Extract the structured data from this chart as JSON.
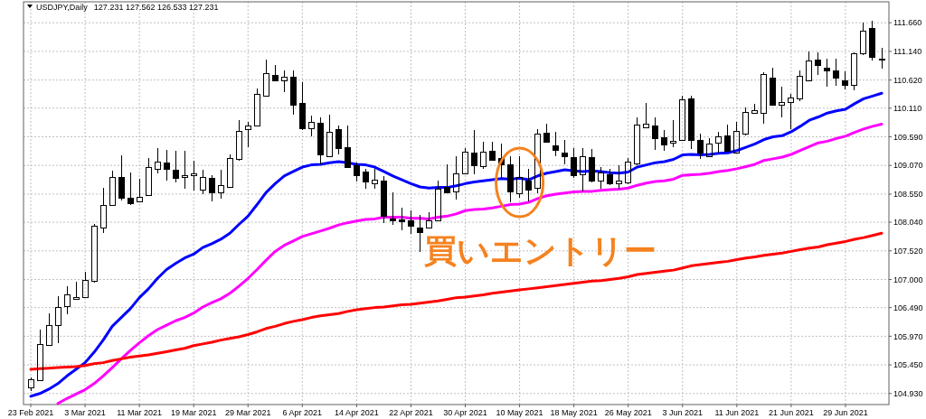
{
  "chart_data": {
    "type": "candlestick",
    "title": "USDJPY,Daily",
    "subtitle": "127.231 127.562 126.533 127.231",
    "categories": [
      "23 Feb 2021",
      null,
      null,
      null,
      null,
      null,
      "3 Mar 2021",
      null,
      null,
      null,
      null,
      null,
      "11 Mar 2021",
      null,
      null,
      null,
      null,
      null,
      "19 Mar 2021",
      null,
      null,
      null,
      null,
      null,
      "29 Mar 2021",
      null,
      null,
      null,
      null,
      null,
      "6 Apr 2021",
      null,
      null,
      null,
      null,
      null,
      "14 Apr 2021",
      null,
      null,
      null,
      null,
      null,
      "22 Apr 2021",
      null,
      null,
      null,
      null,
      null,
      "30 Apr 2021",
      null,
      null,
      null,
      null,
      null,
      "10 May 2021",
      null,
      null,
      null,
      null,
      null,
      "18 May 2021",
      null,
      null,
      null,
      null,
      null,
      "26 May 2021",
      null,
      null,
      null,
      null,
      null,
      "3 Jun 2021",
      null,
      null,
      null,
      null,
      null,
      "11 Jun 2021",
      null,
      null,
      null,
      null,
      null,
      "21 Jun 2021",
      null,
      null,
      null,
      null,
      null,
      "29 Jun 2021",
      null,
      null,
      null,
      null
    ],
    "ohlc": [
      [
        105.03,
        105.22,
        104.98,
        105.18
      ],
      [
        105.16,
        106.09,
        105.15,
        105.82
      ],
      [
        105.8,
        106.39,
        105.8,
        106.17
      ],
      [
        106.17,
        106.69,
        105.85,
        106.49
      ],
      [
        106.51,
        106.88,
        106.37,
        106.72
      ],
      [
        106.64,
        106.96,
        106.64,
        106.68
      ],
      [
        106.68,
        107.14,
        106.67,
        106.99
      ],
      [
        106.96,
        108.0,
        106.95,
        107.96
      ],
      [
        107.94,
        108.66,
        107.84,
        108.35
      ],
      [
        108.34,
        108.97,
        108.34,
        108.86
      ],
      [
        108.86,
        109.26,
        108.44,
        108.47
      ],
      [
        108.47,
        108.95,
        108.36,
        108.37
      ],
      [
        108.41,
        108.83,
        108.4,
        108.49
      ],
      [
        108.52,
        109.2,
        108.52,
        109.03
      ],
      [
        109.0,
        109.38,
        108.93,
        109.13
      ],
      [
        109.12,
        109.36,
        108.79,
        109.0
      ],
      [
        108.99,
        109.34,
        108.77,
        108.83
      ],
      [
        108.85,
        109.34,
        108.64,
        108.89
      ],
      [
        108.89,
        109.16,
        108.62,
        108.91
      ],
      [
        108.62,
        108.99,
        108.55,
        108.86
      ],
      [
        108.83,
        108.9,
        108.42,
        108.58
      ],
      [
        108.57,
        108.99,
        108.47,
        108.71
      ],
      [
        108.68,
        109.27,
        108.68,
        109.2
      ],
      [
        109.18,
        109.89,
        109.16,
        109.69
      ],
      [
        109.72,
        109.86,
        109.4,
        109.79
      ],
      [
        109.79,
        110.46,
        109.78,
        110.36
      ],
      [
        110.33,
        110.99,
        110.32,
        110.73
      ],
      [
        110.71,
        110.89,
        110.6,
        110.61
      ],
      [
        110.61,
        110.79,
        110.4,
        110.67
      ],
      [
        110.67,
        110.79,
        109.99,
        110.17
      ],
      [
        110.19,
        110.58,
        109.71,
        109.73
      ],
      [
        109.73,
        109.97,
        109.6,
        109.85
      ],
      [
        109.83,
        109.94,
        109.09,
        109.27
      ],
      [
        109.23,
        109.99,
        109.23,
        109.67
      ],
      [
        109.72,
        109.8,
        109.27,
        109.38
      ],
      [
        109.4,
        109.79,
        109.03,
        109.04
      ],
      [
        109.07,
        109.12,
        108.78,
        108.89
      ],
      [
        108.95,
        109.0,
        108.64,
        108.77
      ],
      [
        108.74,
        109.0,
        108.64,
        108.81
      ],
      [
        108.78,
        108.88,
        108.03,
        108.14
      ],
      [
        108.09,
        108.58,
        107.99,
        108.06
      ],
      [
        108.08,
        108.3,
        107.89,
        108.05
      ],
      [
        108.06,
        108.25,
        107.82,
        107.96
      ],
      [
        107.94,
        108.17,
        107.5,
        107.86
      ],
      [
        107.94,
        108.22,
        107.93,
        108.07
      ],
      [
        108.07,
        108.79,
        108.06,
        108.64
      ],
      [
        108.68,
        109.09,
        108.57,
        108.58
      ],
      [
        108.59,
        109.24,
        108.45,
        108.91
      ],
      [
        108.91,
        109.38,
        108.91,
        109.31
      ],
      [
        109.29,
        109.72,
        108.91,
        109.07
      ],
      [
        109.05,
        109.5,
        109.01,
        109.31
      ],
      [
        109.32,
        109.5,
        109.15,
        109.16
      ],
      [
        109.19,
        109.46,
        108.85,
        109.08
      ],
      [
        109.08,
        109.23,
        108.4,
        108.59
      ],
      [
        108.56,
        109.24,
        108.48,
        108.86
      ],
      [
        108.79,
        109.0,
        108.42,
        108.62
      ],
      [
        108.66,
        109.73,
        108.56,
        109.64
      ],
      [
        109.65,
        109.82,
        109.49,
        109.49
      ],
      [
        109.43,
        109.68,
        109.24,
        109.35
      ],
      [
        109.29,
        109.53,
        109.09,
        109.23
      ],
      [
        109.22,
        109.38,
        108.85,
        108.89
      ],
      [
        108.9,
        109.38,
        108.6,
        109.23
      ],
      [
        109.22,
        109.37,
        108.77,
        108.78
      ],
      [
        108.78,
        109.04,
        108.64,
        108.94
      ],
      [
        108.9,
        109.01,
        108.72,
        108.73
      ],
      [
        108.74,
        109.08,
        108.64,
        108.78
      ],
      [
        108.75,
        109.2,
        108.73,
        109.13
      ],
      [
        109.09,
        109.94,
        109.08,
        109.81
      ],
      [
        109.76,
        110.21,
        109.75,
        109.82
      ],
      [
        109.79,
        109.94,
        109.36,
        109.55
      ],
      [
        109.58,
        109.71,
        109.34,
        109.45
      ],
      [
        109.48,
        109.89,
        109.4,
        109.5
      ],
      [
        109.52,
        110.33,
        109.51,
        110.26
      ],
      [
        110.28,
        110.33,
        109.37,
        109.53
      ],
      [
        109.53,
        109.64,
        109.19,
        109.29
      ],
      [
        109.23,
        109.56,
        109.22,
        109.46
      ],
      [
        109.47,
        109.68,
        109.31,
        109.59
      ],
      [
        109.6,
        109.81,
        109.32,
        109.32
      ],
      [
        109.3,
        109.86,
        109.29,
        109.68
      ],
      [
        109.64,
        110.13,
        109.62,
        110.03
      ],
      [
        110.02,
        110.19,
        110.01,
        110.07
      ],
      [
        110.01,
        110.76,
        109.82,
        110.72
      ],
      [
        110.65,
        110.84,
        110.17,
        110.17
      ],
      [
        110.16,
        110.5,
        109.95,
        110.21
      ],
      [
        110.21,
        110.37,
        109.73,
        110.3
      ],
      [
        110.27,
        110.8,
        110.24,
        110.68
      ],
      [
        110.6,
        111.14,
        110.59,
        110.97
      ],
      [
        110.98,
        111.13,
        110.72,
        110.89
      ],
      [
        110.84,
        111.0,
        110.5,
        110.79
      ],
      [
        110.79,
        111.0,
        110.51,
        110.65
      ],
      [
        110.6,
        110.78,
        110.45,
        110.53
      ],
      [
        110.53,
        111.13,
        110.44,
        111.09
      ],
      [
        111.09,
        111.67,
        111.08,
        111.51
      ],
      [
        111.55,
        111.69,
        110.98,
        111.03
      ],
      [
        111.0,
        111.21,
        110.82,
        110.98
      ]
    ],
    "series": [
      {
        "type": "line",
        "color": "#0000ff",
        "values": [
          104.88,
          104.93,
          105.01,
          105.11,
          105.25,
          105.37,
          105.49,
          105.68,
          105.9,
          106.15,
          106.31,
          106.47,
          106.67,
          106.83,
          107.02,
          107.18,
          107.29,
          107.39,
          107.46,
          107.58,
          107.65,
          107.73,
          107.84,
          108.0,
          108.15,
          108.36,
          108.58,
          108.74,
          108.88,
          108.96,
          109.04,
          109.08,
          109.09,
          109.12,
          109.14,
          109.12,
          109.09,
          109.08,
          109.04,
          108.96,
          108.88,
          108.81,
          108.74,
          108.68,
          108.66,
          108.67,
          108.67,
          108.7,
          108.74,
          108.77,
          108.79,
          108.81,
          108.83,
          108.82,
          108.84,
          108.81,
          108.88,
          108.93,
          108.96,
          108.99,
          108.97,
          108.96,
          108.97,
          108.96,
          108.94,
          108.93,
          108.95,
          109.04,
          109.08,
          109.12,
          109.14,
          109.18,
          109.26,
          109.27,
          109.26,
          109.27,
          109.29,
          109.3,
          109.34,
          109.4,
          109.46,
          109.54,
          109.59,
          109.61,
          109.68,
          109.78,
          109.89,
          109.95,
          110.02,
          110.06,
          110.09,
          110.19,
          110.28,
          110.33,
          110.38
        ]
      },
      {
        "type": "line",
        "color": "#ff00ff",
        "values": [
          null,
          null,
          null,
          104.75,
          104.84,
          104.92,
          105.0,
          105.11,
          105.25,
          105.4,
          105.56,
          105.71,
          105.85,
          105.98,
          106.09,
          106.17,
          106.25,
          106.31,
          106.39,
          106.5,
          106.58,
          106.65,
          106.75,
          106.88,
          107.02,
          107.18,
          107.35,
          107.51,
          107.62,
          107.7,
          107.78,
          107.83,
          107.88,
          107.93,
          107.99,
          108.03,
          108.06,
          108.09,
          108.1,
          108.13,
          108.13,
          108.13,
          108.11,
          108.11,
          108.1,
          108.13,
          108.15,
          108.19,
          108.25,
          108.27,
          108.28,
          108.3,
          108.33,
          108.36,
          108.37,
          108.4,
          108.47,
          108.52,
          108.55,
          108.57,
          108.59,
          108.6,
          108.6,
          108.62,
          108.63,
          108.64,
          108.66,
          108.71,
          108.75,
          108.78,
          108.79,
          108.82,
          108.89,
          108.9,
          108.91,
          108.93,
          108.96,
          108.98,
          109.01,
          109.05,
          109.09,
          109.16,
          109.19,
          109.22,
          109.27,
          109.34,
          109.41,
          109.48,
          109.51,
          109.56,
          109.6,
          109.67,
          109.73,
          109.78,
          109.82
        ]
      },
      {
        "type": "line",
        "color": "#ff0000",
        "values": [
          105.37,
          105.38,
          105.39,
          105.4,
          105.41,
          105.42,
          105.44,
          105.47,
          105.49,
          105.53,
          105.56,
          105.59,
          105.61,
          105.63,
          105.66,
          105.69,
          105.72,
          105.75,
          105.8,
          105.83,
          105.86,
          105.9,
          105.93,
          105.96,
          106.0,
          106.05,
          106.11,
          106.15,
          106.2,
          106.24,
          106.27,
          106.31,
          106.34,
          106.36,
          106.38,
          106.42,
          106.45,
          106.47,
          106.49,
          106.5,
          106.52,
          106.54,
          106.55,
          106.57,
          106.59,
          106.61,
          106.64,
          106.67,
          106.68,
          106.7,
          106.72,
          106.75,
          106.77,
          106.79,
          106.81,
          106.83,
          106.85,
          106.87,
          106.89,
          106.91,
          106.93,
          106.95,
          106.97,
          106.98,
          107.0,
          107.02,
          107.05,
          107.09,
          107.11,
          107.13,
          107.15,
          107.17,
          107.21,
          107.25,
          107.27,
          107.29,
          107.31,
          107.33,
          107.36,
          107.39,
          107.41,
          107.44,
          107.46,
          107.48,
          107.51,
          107.54,
          107.57,
          107.59,
          107.63,
          107.66,
          107.69,
          107.73,
          107.76,
          107.8,
          107.84
        ]
      }
    ],
    "ylim": [
      104.73,
      112.04
    ],
    "yticks": [
      {
        "value": 111.66,
        "label": "111.660"
      },
      {
        "value": 111.14,
        "label": "111.140"
      },
      {
        "value": 110.62,
        "label": "110.620"
      },
      {
        "value": 110.11,
        "label": "110.110"
      },
      {
        "value": 109.59,
        "label": "109.590"
      },
      {
        "value": 109.07,
        "label": "109.070"
      },
      {
        "value": 108.55,
        "label": "108.550"
      },
      {
        "value": 108.04,
        "label": "108.040"
      },
      {
        "value": 107.52,
        "label": "107.520"
      },
      {
        "value": 107.0,
        "label": "107.000"
      },
      {
        "value": 106.49,
        "label": "106.490"
      },
      {
        "value": 105.97,
        "label": "105.970"
      },
      {
        "value": 105.45,
        "label": "105.450"
      },
      {
        "value": 104.93,
        "label": "104.930"
      }
    ],
    "grid": true,
    "annotations": [
      {
        "text": "買いエントリー",
        "x": "10 May 2021",
        "y": 108.76
      }
    ]
  }
}
